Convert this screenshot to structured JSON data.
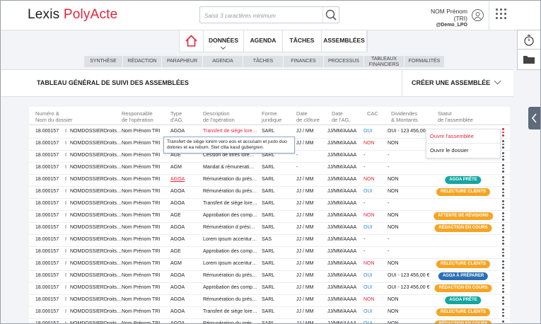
{
  "app": {
    "logo_part1": "Lexis ",
    "logo_part2": "PolyActe"
  },
  "search": {
    "placeholder": "Saisir 3 caractères minimum"
  },
  "user": {
    "name": "NOM Prénom (TRI)",
    "id": "@Demo_LPO"
  },
  "icons": {
    "search": "search-icon",
    "avatar": "user-avatar-icon",
    "apps": "apps-grid-icon",
    "home": "home-icon",
    "timer": "stopwatch-icon",
    "folder": "folder-icon",
    "collapse": "chevron-left-icon"
  },
  "colors": {
    "brand_red": "#e2263a",
    "link_blue": "#1f8ad1",
    "badge_teal": "#14a6a0",
    "badge_orange": "#f5a423",
    "badge_blue": "#2a6fb5",
    "panel_tab": "#5e6b7a"
  },
  "nav": {
    "items": [
      "DONNÉES",
      "AGENDA",
      "TÂCHES",
      "ASSEMBLÉES"
    ],
    "active": "DONNÉES"
  },
  "subnav": [
    "SYNTHÈSE",
    "RÉDACTION",
    "PARAPHEUR",
    "AGENDA",
    "TÂCHES",
    "FINANCES",
    "PROCESSUS",
    "TABLEAUX\nFINANCIERS",
    "FORMALITÉS"
  ],
  "page": {
    "title": "TABLEAU GÉNÉRAL DE SUIVI DES ASSEMBLÉES",
    "create_label": "CRÉER UNE ASSEMBLÉE"
  },
  "table": {
    "headers": [
      "Numéro &\nNom du dossier",
      "Responsable\nde l'opération",
      "Type\nd'AG.",
      "Description\nde l'opération",
      "Forme\njuridique",
      "Date\nde clôture",
      "Date\nde l'AG.",
      "CAC",
      "Dividendes\n& Montants",
      "Statut\nde l'assemblée"
    ],
    "rows": [
      {
        "num": "18.000157",
        "dossier": "NOMDOSSIERDroits…",
        "resp": "Nom Prénom TRI",
        "type": "AGOA",
        "type_hl": false,
        "desc": "Transfert de siège lore…",
        "desc_hl": true,
        "forme": "SARL",
        "cloture": "JJ / MM",
        "date_ag": "JJ/MM/AAAA",
        "cac": "OUI",
        "div": "OUI - 123 456,00 €",
        "status": "",
        "status_color": ""
      },
      {
        "num": "18.000157",
        "dossier": "NOMDOSSIERDroits…",
        "resp": "Nom Prénom TRI",
        "type": "AGOA",
        "type_hl": false,
        "desc": "",
        "desc_hl": false,
        "forme": "SARL",
        "cloture": "JJ / MM",
        "date_ag": "JJ/MM/AAAA",
        "cac": "NON",
        "div": "NON",
        "status": "",
        "status_color": ""
      },
      {
        "num": "18.000157",
        "dossier": "NOMDOSSIERDroits…",
        "resp": "Nom Prénom TRI",
        "type": "AGE",
        "type_hl": false,
        "desc": "Cession de titres lore…",
        "desc_hl": false,
        "forme": "SARL",
        "cloture": "-",
        "date_ag": "JJ/MM/AAAA",
        "cac": "-",
        "div": "-",
        "status": "",
        "status_color": ""
      },
      {
        "num": "18.000157",
        "dossier": "NOMDOSSIERDroits…",
        "resp": "Nom Prénom TRI",
        "type": "AGM",
        "type_hl": false,
        "desc": "Mandat & rémunerati…",
        "desc_hl": false,
        "forme": "SARL",
        "cloture": "-",
        "date_ag": "JJ/MM/AAAA",
        "cac": "-",
        "div": "-",
        "status": "",
        "status_color": ""
      },
      {
        "num": "18.000157",
        "dossier": "NOMDOSSIERDroits…",
        "resp": "Nom Prénom TRI",
        "type": "AGOA",
        "type_hl": true,
        "desc": "Rémunération du prés…",
        "desc_hl": false,
        "forme": "SARL",
        "cloture": "JJ / MM",
        "date_ag": "JJ/MM/AAAA",
        "cac": "NON",
        "div": "NON",
        "status": "AGOA PRÊTE",
        "status_color": "#14a6a0"
      },
      {
        "num": "18.000157",
        "dossier": "NOMDOSSIERDroits…",
        "resp": "Nom Prénom TRI",
        "type": "AGOA",
        "type_hl": false,
        "desc": "Rémunération du prés…",
        "desc_hl": false,
        "forme": "SARL",
        "cloture": "JJ / MM",
        "date_ag": "JJ/MM/AAAA",
        "cac": "OUI",
        "div": "NON",
        "status": "RELECTURE CLIENTS",
        "status_color": "#f5a423"
      },
      {
        "num": "18.000157",
        "dossier": "NOMDOSSIERDroits…",
        "resp": "Nom Prénom TRI",
        "type": "AGOA",
        "type_hl": false,
        "desc": "Transfert de siège lore…",
        "desc_hl": false,
        "forme": "SARL",
        "cloture": "JJ / MM",
        "date_ag": "JJ/MM/AAAA",
        "cac": "-",
        "div": "-",
        "status": "",
        "status_color": ""
      },
      {
        "num": "18.000157",
        "dossier": "NOMDOSSIERDroits…",
        "resp": "Nom Prénom TRI",
        "type": "AGE",
        "type_hl": false,
        "desc": "Approbation des comp…",
        "desc_hl": false,
        "forme": "SARL",
        "cloture": "JJ / MM",
        "date_ag": "JJ/MM/AAAA",
        "cac": "NON",
        "div": "NON",
        "status": "ATTENTE DE RÉVISIONS",
        "status_color": "#f5a423"
      },
      {
        "num": "18.000157",
        "dossier": "NOMDOSSIERDroits…",
        "resp": "Nom Prénom TRI",
        "type": "AGOA",
        "type_hl": false,
        "desc": "Rémunération d prési…",
        "desc_hl": false,
        "forme": "SARL",
        "cloture": "JJ / MM",
        "date_ag": "JJ/MM/AAAA",
        "cac": "OUI",
        "div": "NON",
        "status": "RÉDACTION EN COURS",
        "status_color": "#f5a423"
      },
      {
        "num": "18.000157",
        "dossier": "NOMDOSSIERDroits…",
        "resp": "Nom Prénom TRI",
        "type": "AGOA",
        "type_hl": false,
        "desc": "Lorem ipsum accentur…",
        "desc_hl": false,
        "forme": "SAS",
        "cloture": "JJ / MM",
        "date_ag": "JJ/MM/AAAA",
        "cac": "-",
        "div": "-",
        "status": "",
        "status_color": ""
      },
      {
        "num": "18.000157",
        "dossier": "NOMDOSSIERDroits…",
        "resp": "Nom Prénom TRI",
        "type": "AGE",
        "type_hl": false,
        "desc": "Approbation des comp…",
        "desc_hl": false,
        "forme": "SARL",
        "cloture": "JJ / MM",
        "date_ag": "JJ/MM/AAAA",
        "cac": "-",
        "div": "-",
        "status": "",
        "status_color": ""
      },
      {
        "num": "18.000157",
        "dossier": "NOMDOSSIERDroits…",
        "resp": "Nom Prénom TRI",
        "type": "AGM",
        "type_hl": false,
        "desc": "Lorem ipsum accentur…",
        "desc_hl": false,
        "forme": "SARL",
        "cloture": "JJ / MM",
        "date_ag": "JJ/MM/AAAA",
        "cac": "NON",
        "div": "NON",
        "status": "RELECTURE CLIENTS",
        "status_color": "#f5a423"
      },
      {
        "num": "18.000157",
        "dossier": "NOMDOSSIERDroits…",
        "resp": "Nom Prénom TRI",
        "type": "AGOA",
        "type_hl": false,
        "desc": "Rémunération du prés…",
        "desc_hl": false,
        "forme": "SARL",
        "cloture": "JJ / MM",
        "date_ag": "JJ/MM/AAAA",
        "cac": "OUI",
        "div": "OUI - 123 456,00 €",
        "status": "AGOA À PRÉPARER",
        "status_color": "#2a6fb5"
      },
      {
        "num": "18.000157",
        "dossier": "NOMDOSSIERDroits…",
        "resp": "Nom Prénom TRI",
        "type": "AGOA",
        "type_hl": false,
        "desc": "Approbation des comp…",
        "desc_hl": false,
        "forme": "SARL",
        "cloture": "JJ / MM",
        "date_ag": "JJ/MM/AAAA",
        "cac": "OUI",
        "div": "OUI - 123 456,00 €",
        "status": "RÉDACTION EN COURS",
        "status_color": "#f5a423"
      },
      {
        "num": "18.000157",
        "dossier": "NOMDOSSIERDroits…",
        "resp": "Nom Prénom TRI",
        "type": "AGOA",
        "type_hl": false,
        "desc": "Rémunération du prés…",
        "desc_hl": false,
        "forme": "SARL",
        "cloture": "JJ / MM",
        "date_ag": "JJ/MM/AAAA",
        "cac": "NON",
        "div": "NON",
        "status": "AGOA PRÊTE",
        "status_color": "#14a6a0"
      },
      {
        "num": "18.000157",
        "dossier": "NOMDOSSIERDroits…",
        "resp": "Nom Prénom TRI",
        "type": "AGOA",
        "type_hl": false,
        "desc": "Transfert de siège lore…",
        "desc_hl": false,
        "forme": "SARL",
        "cloture": "JJ / MM",
        "date_ag": "JJ/MM/AAAA",
        "cac": "OUI",
        "div": "NON",
        "status": "RELECTURE CLIENTS",
        "status_color": "#f5a423"
      },
      {
        "num": "18.000157",
        "dossier": "NOMDOSSIERDroits…",
        "resp": "Nom Prénom TRI",
        "type": "AGOA",
        "type_hl": false,
        "desc": "Rémunération du prés…",
        "desc_hl": false,
        "forme": "SARL",
        "cloture": "JJ / MM",
        "date_ag": "JJ/MM/AAAA",
        "cac": "OUI",
        "div": "NON",
        "status": "RÉDACTION EN COURS",
        "status_color": "#f5a423"
      }
    ]
  },
  "tooltip": {
    "text": "Transfert de siège lorem vero eos et accusam et justo duo dolores et ea rebum. Stet clita kasd gubergren."
  },
  "context_menu": {
    "open": "Ouvrir l'assemblée",
    "folder": "Ouvrir le dossier"
  }
}
